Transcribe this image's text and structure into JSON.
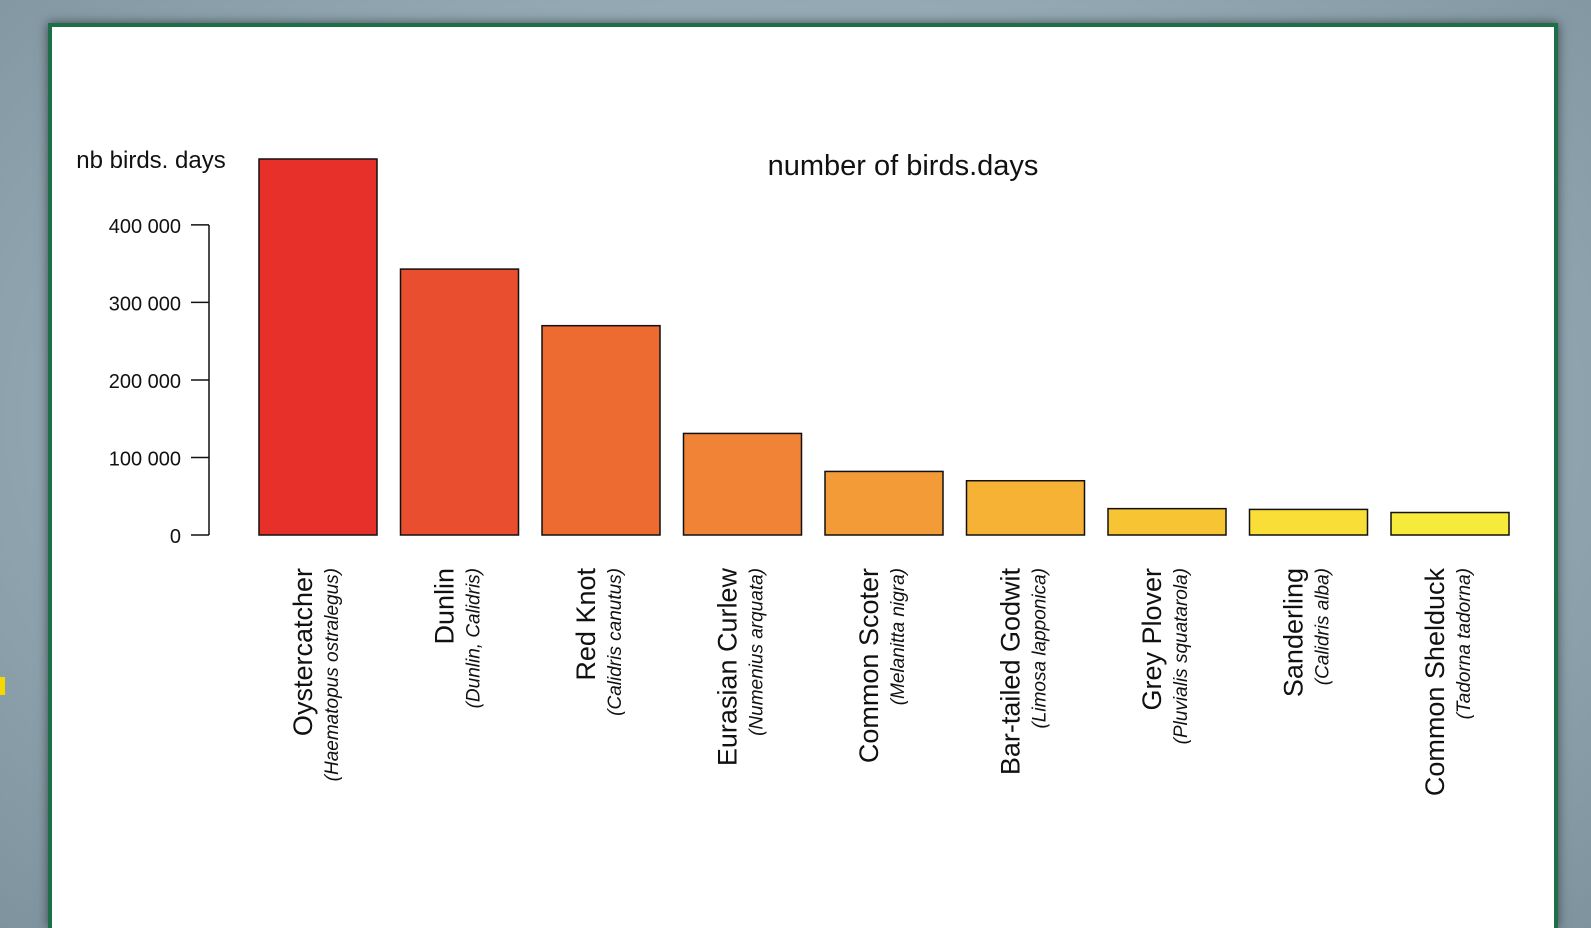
{
  "chart_data": {
    "type": "bar",
    "title": "number of birds.days",
    "ylabel": "nb birds. days",
    "xlabel": "",
    "ylim": [
      0,
      485000
    ],
    "yticks": [
      {
        "value": 0,
        "label": "0"
      },
      {
        "value": 100000,
        "label": "100 000"
      },
      {
        "value": 200000,
        "label": "200 000"
      },
      {
        "value": 300000,
        "label": "300 000"
      },
      {
        "value": 400000,
        "label": "400 000"
      }
    ],
    "categories": [
      {
        "name": "Oystercatcher",
        "latin": "(Haematopus ostralegus)"
      },
      {
        "name": "Dunlin",
        "latin": "(Dunlin, Calidris)"
      },
      {
        "name": "Red Knot",
        "latin": "(Calidris canutus)"
      },
      {
        "name": "Eurasian Curlew",
        "latin": "(Numenius arquata)"
      },
      {
        "name": "Common Scoter",
        "latin": "(Melanitta nigra)"
      },
      {
        "name": "Bar-tailed Godwit",
        "latin": "(Limosa lapponica)"
      },
      {
        "name": "Grey Plover",
        "latin": "(Pluvialis squatarola)"
      },
      {
        "name": "Sanderling",
        "latin": "(Calidris alba)"
      },
      {
        "name": "Common Shelduck",
        "latin": "(Tadorna tadorna)"
      }
    ],
    "values": [
      485000,
      343000,
      270000,
      131000,
      82000,
      70000,
      34000,
      33000,
      29000
    ],
    "colors": [
      "#e8302a",
      "#e94f2e",
      "#ed6a31",
      "#f08335",
      "#f29b37",
      "#f5b234",
      "#f7c533",
      "#f8de37",
      "#f6ea3a"
    ],
    "grid": false,
    "legend": "none"
  }
}
